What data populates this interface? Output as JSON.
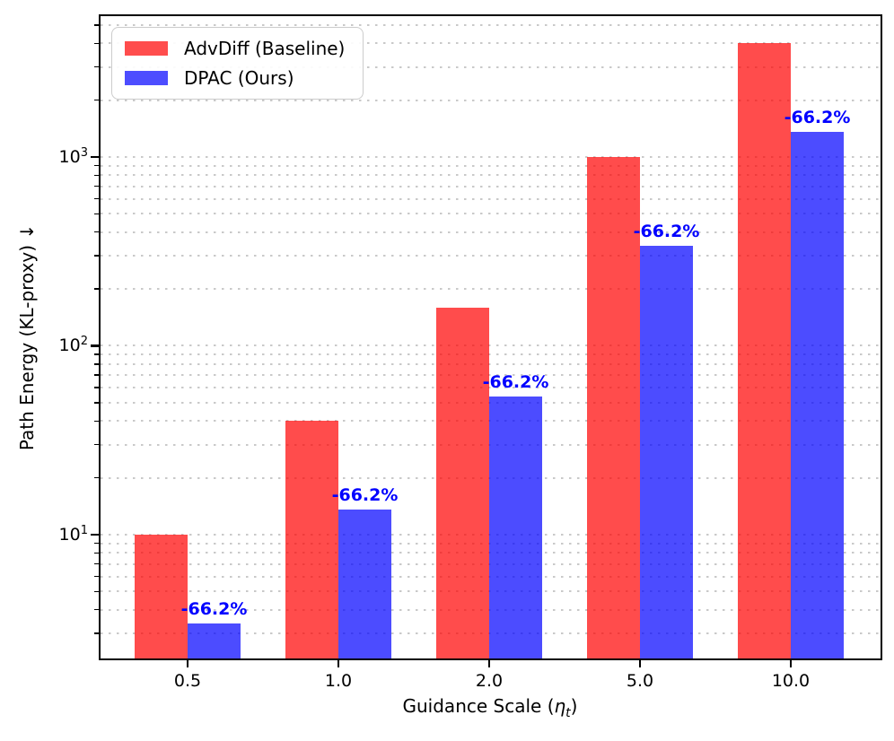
{
  "chart_data": {
    "type": "bar",
    "title": "",
    "y_scale": "log",
    "xlabel": "Guidance Scale (η_t)",
    "xlabel_parts": {
      "prefix": "Guidance Scale (",
      "symbol": "η",
      "subscript": "t",
      "suffix": ")"
    },
    "ylabel": "Path Energy (KL-proxy)  ↓",
    "categories": [
      "0.5",
      "1.0",
      "2.0",
      "5.0",
      "10.0"
    ],
    "series": [
      {
        "name": "AdvDiff (Baseline)",
        "color": "#FF0000",
        "fill_alpha": 0.7,
        "values": [
          10,
          40,
          160,
          1000,
          4000
        ]
      },
      {
        "name": "DPAC (Ours)",
        "color": "#0000FF",
        "fill_alpha": 0.7,
        "values": [
          3.38,
          13.52,
          54.08,
          338,
          1352
        ]
      }
    ],
    "bar_annotations": {
      "on_series": "DPAC (Ours)",
      "labels": [
        "-66.2%",
        "-66.2%",
        "-66.2%",
        "-66.2%",
        "-66.2%"
      ],
      "color": "#0000FF"
    },
    "ylim": [
      2.21,
      5570
    ],
    "yticks": {
      "values": [
        10,
        100,
        1000
      ],
      "labels": [
        "10^1",
        "10^2",
        "10^3"
      ]
    },
    "grid": {
      "axis": "y",
      "which": "both",
      "style": "dotted",
      "color": "#c9c9c9"
    },
    "legend_position": "upper left"
  },
  "legend": {
    "items": [
      {
        "label": "AdvDiff (Baseline)",
        "swatch_color": "#FF4D4D"
      },
      {
        "label": "DPAC (Ours)",
        "swatch_color": "#4D4DFF"
      }
    ]
  }
}
